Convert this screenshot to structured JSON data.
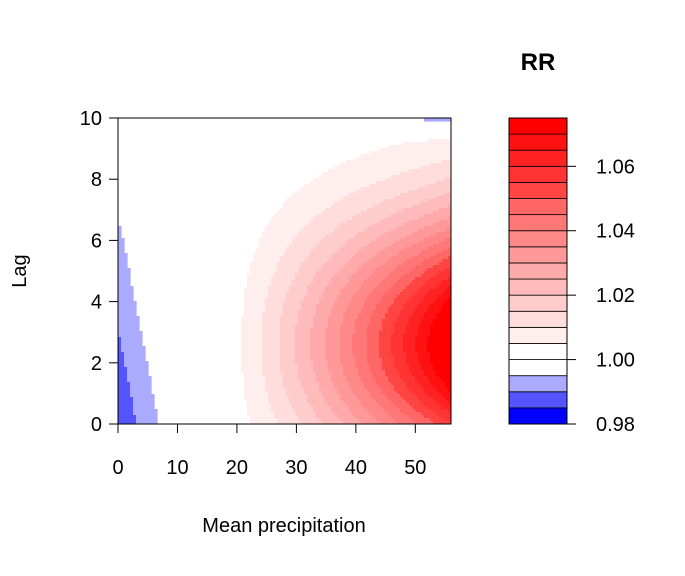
{
  "chart_data": {
    "type": "heatmap",
    "title": "",
    "xlabel": "Mean precipitation",
    "ylabel": "Lag",
    "xlim": [
      0,
      56
    ],
    "ylim": [
      0,
      10
    ],
    "x_ticks": [
      "0",
      "10",
      "20",
      "30",
      "40",
      "50"
    ],
    "y_ticks": [
      "0",
      "2",
      "4",
      "6",
      "8",
      "10"
    ],
    "legend": {
      "title": "RR",
      "range": [
        0.98,
        1.075
      ],
      "ticks": [
        "0.98",
        "1.00",
        "1.02",
        "1.04",
        "1.06"
      ],
      "bands": [
        {
          "from": 0.98,
          "to": 0.985,
          "color": "#0000ff"
        },
        {
          "from": 0.985,
          "to": 0.99,
          "color": "#5555ff"
        },
        {
          "from": 0.99,
          "to": 0.995,
          "color": "#aaaaff"
        },
        {
          "from": 0.995,
          "to": 1.0,
          "color": "#ffffff"
        },
        {
          "from": 1.0,
          "to": 1.005,
          "color": "#ffffff"
        },
        {
          "from": 1.005,
          "to": 1.01,
          "color": "#ffeeee"
        },
        {
          "from": 1.01,
          "to": 1.015,
          "color": "#ffdddd"
        },
        {
          "from": 1.015,
          "to": 1.02,
          "color": "#ffcccc"
        },
        {
          "from": 1.02,
          "to": 1.025,
          "color": "#ffbbbb"
        },
        {
          "from": 1.025,
          "to": 1.03,
          "color": "#ffaaaa"
        },
        {
          "from": 1.03,
          "to": 1.035,
          "color": "#ff9999"
        },
        {
          "from": 1.035,
          "to": 1.04,
          "color": "#ff8888"
        },
        {
          "from": 1.04,
          "to": 1.045,
          "color": "#ff7777"
        },
        {
          "from": 1.045,
          "to": 1.05,
          "color": "#ff6666"
        },
        {
          "from": 1.05,
          "to": 1.055,
          "color": "#ff4444"
        },
        {
          "from": 1.055,
          "to": 1.06,
          "color": "#ff3333"
        },
        {
          "from": 1.06,
          "to": 1.065,
          "color": "#ff2222"
        },
        {
          "from": 1.065,
          "to": 1.07,
          "color": "#ff1111"
        },
        {
          "from": 1.07,
          "to": 1.075,
          "color": "#ff0000"
        }
      ]
    }
  }
}
